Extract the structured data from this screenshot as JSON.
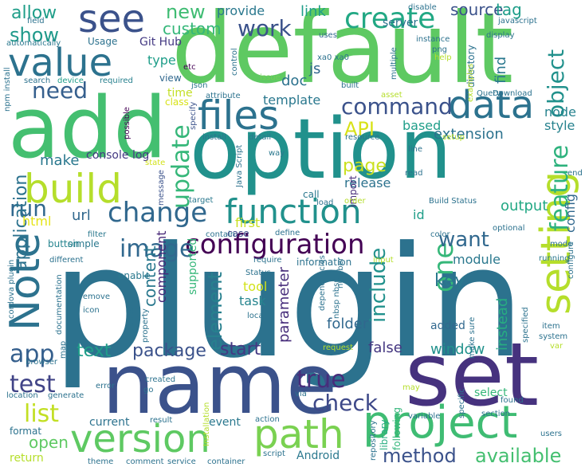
{
  "words": [
    {
      "text": "plugin",
      "color": "#2c728e"
    },
    {
      "text": "default",
      "color": "#5ec962"
    },
    {
      "text": "option",
      "color": "#21918c"
    },
    {
      "text": "add",
      "color": "#44bf70"
    },
    {
      "text": "name",
      "color": "#3b528b"
    },
    {
      "text": "set",
      "color": "#46327e"
    },
    {
      "text": "path",
      "color": "#7ad151"
    },
    {
      "text": "project",
      "color": "#3fbc73"
    },
    {
      "text": "version",
      "color": "#5ec962"
    },
    {
      "text": "Note",
      "color": "#2c728e"
    },
    {
      "text": "setting",
      "color": "#b5de2b"
    },
    {
      "text": "value",
      "color": "#2c728e"
    },
    {
      "text": "files",
      "color": "#2c728e"
    },
    {
      "text": "data",
      "color": "#2c728e"
    },
    {
      "text": "function",
      "color": "#21918c"
    },
    {
      "text": "build",
      "color": "#b5de2b"
    },
    {
      "text": "see",
      "color": "#3b528b"
    },
    {
      "text": "change",
      "color": "#31688e"
    },
    {
      "text": "configuration",
      "color": "#440154"
    },
    {
      "text": "create",
      "color": "#22a884"
    },
    {
      "text": "update",
      "color": "#35b779"
    },
    {
      "text": "feature",
      "color": "#2db27d"
    },
    {
      "text": "object",
      "color": "#21918c"
    },
    {
      "text": "command",
      "color": "#3b528b"
    },
    {
      "text": "image",
      "color": "#31688e"
    },
    {
      "text": "one",
      "color": "#35b779"
    },
    {
      "text": "include",
      "color": "#21918c"
    },
    {
      "text": "element",
      "color": "#27808e"
    },
    {
      "text": "app",
      "color": "#355f8d"
    },
    {
      "text": "list",
      "color": "#c2df23"
    },
    {
      "text": "test",
      "color": "#414487"
    },
    {
      "text": "true",
      "color": "#472d7b"
    },
    {
      "text": "check",
      "color": "#3e4989"
    },
    {
      "text": "method",
      "color": "#3b528b"
    },
    {
      "text": "available",
      "color": "#44bf70"
    },
    {
      "text": "work",
      "color": "#3b528b"
    },
    {
      "text": "need",
      "color": "#355f8d"
    },
    {
      "text": "show",
      "color": "#1f998a"
    },
    {
      "text": "API",
      "color": "#d8e219"
    },
    {
      "text": "run",
      "color": "#31688e"
    },
    {
      "text": "application",
      "color": "#2c728e"
    },
    {
      "text": "want",
      "color": "#31688e"
    },
    {
      "text": "package",
      "color": "#3b528b"
    },
    {
      "text": "start",
      "color": "#443983"
    },
    {
      "text": "text",
      "color": "#1f9e89"
    },
    {
      "text": "new",
      "color": "#3fbc73"
    },
    {
      "text": "allow",
      "color": "#1f9e89"
    },
    {
      "text": "custom",
      "color": "#35b779"
    },
    {
      "text": "source",
      "color": "#3b528b"
    },
    {
      "text": "tag",
      "color": "#1f9e89"
    },
    {
      "text": "link",
      "color": "#1f9e89"
    },
    {
      "text": "provide",
      "color": "#2a788e"
    },
    {
      "text": "server",
      "color": "#2c728e"
    },
    {
      "text": "key",
      "color": "#2a788e"
    },
    {
      "text": "open",
      "color": "#5ec962"
    },
    {
      "text": "content",
      "color": "#2a788e"
    },
    {
      "text": "component",
      "color": "#482878"
    },
    {
      "text": "parameter",
      "color": "#472d7b"
    },
    {
      "text": "instead",
      "color": "#27ad81"
    },
    {
      "text": "window",
      "color": "#21918c"
    },
    {
      "text": "folder",
      "color": "#31688e"
    },
    {
      "text": "false",
      "color": "#453781"
    },
    {
      "text": "output",
      "color": "#22a884"
    },
    {
      "text": "config",
      "color": "#31688e"
    },
    {
      "text": "module",
      "color": "#2a788e"
    },
    {
      "text": "page",
      "color": "#cae11f"
    },
    {
      "text": "release",
      "color": "#2c728e"
    },
    {
      "text": "extension",
      "color": "#2c728e"
    },
    {
      "text": "based",
      "color": "#1f9e89"
    },
    {
      "text": "template",
      "color": "#2a788e"
    },
    {
      "text": "style",
      "color": "#26828e"
    },
    {
      "text": "node",
      "color": "#26828e"
    },
    {
      "text": "find",
      "color": "#2a788e"
    },
    {
      "text": "js",
      "color": "#31688e"
    },
    {
      "text": "doc",
      "color": "#2c728e"
    },
    {
      "text": "url",
      "color": "#31688e"
    },
    {
      "text": "html",
      "color": "#e5e419"
    },
    {
      "text": "first",
      "color": "#c8e020"
    },
    {
      "text": "tool",
      "color": "#d2e21b"
    },
    {
      "text": "task",
      "color": "#25848e"
    },
    {
      "text": "id",
      "color": "#1f9e89"
    },
    {
      "text": "make",
      "color": "#2a788e"
    },
    {
      "text": "console log",
      "color": "#443983"
    },
    {
      "text": "Git Hub",
      "color": "#443a83"
    },
    {
      "text": "type",
      "color": "#1f9e89"
    },
    {
      "text": "time",
      "color": "#c2df23"
    },
    {
      "text": "class",
      "color": "#d8e219"
    },
    {
      "text": "view",
      "color": "#31688e"
    },
    {
      "text": "etc",
      "color": "#440154"
    },
    {
      "text": "Usage",
      "color": "#2c728e"
    },
    {
      "text": "current",
      "color": "#2c728e"
    },
    {
      "text": "event",
      "color": "#2a788e"
    },
    {
      "text": "format",
      "color": "#2c728e"
    },
    {
      "text": "return",
      "color": "#b5de2b"
    },
    {
      "text": "Android",
      "color": "#2a788e"
    },
    {
      "text": "select",
      "color": "#35b779"
    },
    {
      "text": "added",
      "color": "#31688e"
    },
    {
      "text": "directory",
      "color": "#2c728e"
    },
    {
      "text": "import",
      "color": "#472d7b"
    },
    {
      "text": "case",
      "color": "#3e4989"
    },
    {
      "text": "simple",
      "color": "#2a788e"
    },
    {
      "text": "enable",
      "color": "#2a788e"
    },
    {
      "text": "button",
      "color": "#25848e"
    },
    {
      "text": "supported",
      "color": "#35b779"
    },
    {
      "text": "information",
      "color": "#2c728e"
    },
    {
      "text": "library",
      "color": "#27ad81"
    },
    {
      "text": "following",
      "color": "#32b67a"
    },
    {
      "text": "call",
      "color": "#2a788e"
    },
    {
      "text": "field",
      "color": "#2c728e"
    },
    {
      "text": "automatically",
      "color": "#2a788e"
    },
    {
      "text": "search",
      "color": "#2c728e"
    },
    {
      "text": "npm install",
      "color": "#2c728e"
    },
    {
      "text": "device",
      "color": "#1f9e89"
    },
    {
      "text": "required",
      "color": "#27808e"
    },
    {
      "text": "issue",
      "color": "#75d054"
    },
    {
      "text": "json",
      "color": "#2a788e"
    },
    {
      "text": "attribute",
      "color": "#2c728e"
    },
    {
      "text": "install",
      "color": "#2c728e"
    },
    {
      "text": "possible",
      "color": "#440154"
    },
    {
      "text": "specify",
      "color": "#3b528b"
    },
    {
      "text": "state",
      "color": "#d2e21b"
    },
    {
      "text": "message",
      "color": "#3b528b"
    },
    {
      "text": "target",
      "color": "#2a788e"
    },
    {
      "text": "filter",
      "color": "#2a788e"
    },
    {
      "text": "Java Script",
      "color": "#2c728e"
    },
    {
      "text": "detail",
      "color": "#2a788e"
    },
    {
      "text": "way",
      "color": "#2a788e"
    },
    {
      "text": "resource",
      "color": "#2c728e"
    },
    {
      "text": "line",
      "color": "#2c728e"
    },
    {
      "text": "read",
      "color": "#2c728e"
    },
    {
      "text": "load",
      "color": "#2c728e"
    },
    {
      "text": "order",
      "color": "#b5de2b"
    },
    {
      "text": "Build Status",
      "color": "#2c728e"
    },
    {
      "text": "end",
      "color": "#2c728e"
    },
    {
      "text": "setup",
      "color": "#b5de2b"
    },
    {
      "text": "uses",
      "color": "#31688e"
    },
    {
      "text": "control",
      "color": "#2c728e"
    },
    {
      "text": "xa0 xa0",
      "color": "#2c728e"
    },
    {
      "text": "disable",
      "color": "#2c728e"
    },
    {
      "text": "instance",
      "color": "#2c728e"
    },
    {
      "text": "png",
      "color": "#2c728e"
    },
    {
      "text": "javascript",
      "color": "#2c728e"
    },
    {
      "text": "display",
      "color": "#2c728e"
    },
    {
      "text": "help",
      "color": "#b5de2b"
    },
    {
      "text": "multiple",
      "color": "#2c728e"
    },
    {
      "text": "built",
      "color": "#2c728e"
    },
    {
      "text": "asset",
      "color": "#b5de2b"
    },
    {
      "text": "examples",
      "color": "#b5de2b"
    },
    {
      "text": "Query",
      "color": "#2c728e"
    },
    {
      "text": "Download",
      "color": "#2c728e"
    },
    {
      "text": "define",
      "color": "#2c728e"
    },
    {
      "text": "contain",
      "color": "#2c728e"
    },
    {
      "text": "color",
      "color": "#2c728e"
    },
    {
      "text": "optional",
      "color": "#2c728e"
    },
    {
      "text": "mode",
      "color": "#2c728e"
    },
    {
      "text": "running",
      "color": "#2a788e"
    },
    {
      "text": "configure",
      "color": "#2c728e"
    },
    {
      "text": "input",
      "color": "#b5de2b"
    },
    {
      "text": "require",
      "color": "#2c728e"
    },
    {
      "text": "Status",
      "color": "#2c728e"
    },
    {
      "text": "number",
      "color": "#2c728e"
    },
    {
      "text": "nbsp nbsp",
      "color": "#2c728e"
    },
    {
      "text": "dependencies",
      "color": "#2c728e"
    },
    {
      "text": "local",
      "color": "#2c728e"
    },
    {
      "text": "make sure",
      "color": "#2c728e"
    },
    {
      "text": "specified",
      "color": "#2c728e"
    },
    {
      "text": "item",
      "color": "#2c728e"
    },
    {
      "text": "system",
      "color": "#2c728e"
    },
    {
      "text": "var",
      "color": "#b5de2b"
    },
    {
      "text": "different",
      "color": "#2c728e"
    },
    {
      "text": "cordova plugin",
      "color": "#2c728e"
    },
    {
      "text": "documentation",
      "color": "#2c728e"
    },
    {
      "text": "remove",
      "color": "#2c728e"
    },
    {
      "text": "icon",
      "color": "#2c728e"
    },
    {
      "text": "supports",
      "color": "#2c728e"
    },
    {
      "text": "property",
      "color": "#2c728e"
    },
    {
      "text": "browser",
      "color": "#2c728e"
    },
    {
      "text": "map",
      "color": "#2c728e"
    },
    {
      "text": "error",
      "color": "#2c728e"
    },
    {
      "text": "go",
      "color": "#2c728e"
    },
    {
      "text": "created",
      "color": "#2c728e"
    },
    {
      "text": "Installation",
      "color": "#b5de2b"
    },
    {
      "text": "location",
      "color": "#2c728e"
    },
    {
      "text": "generate",
      "color": "#2c728e"
    },
    {
      "text": "via",
      "color": "#2c728e"
    },
    {
      "text": "request",
      "color": "#b5de2b"
    },
    {
      "text": "may",
      "color": "#b5de2b"
    },
    {
      "text": "specific",
      "color": "#2c728e"
    },
    {
      "text": "found",
      "color": "#2c728e"
    },
    {
      "text": "section",
      "color": "#2c728e"
    },
    {
      "text": "users",
      "color": "#2c728e"
    },
    {
      "text": "result",
      "color": "#2c728e"
    },
    {
      "text": "action",
      "color": "#2c728e"
    },
    {
      "text": "repository",
      "color": "#2c728e"
    },
    {
      "text": "script",
      "color": "#2c728e"
    },
    {
      "text": "variable",
      "color": "#2c728e"
    },
    {
      "text": "theme",
      "color": "#2c728e"
    },
    {
      "text": "comment",
      "color": "#2c728e"
    },
    {
      "text": "service",
      "color": "#2c728e"
    },
    {
      "text": "container",
      "color": "#2c728e"
    }
  ]
}
